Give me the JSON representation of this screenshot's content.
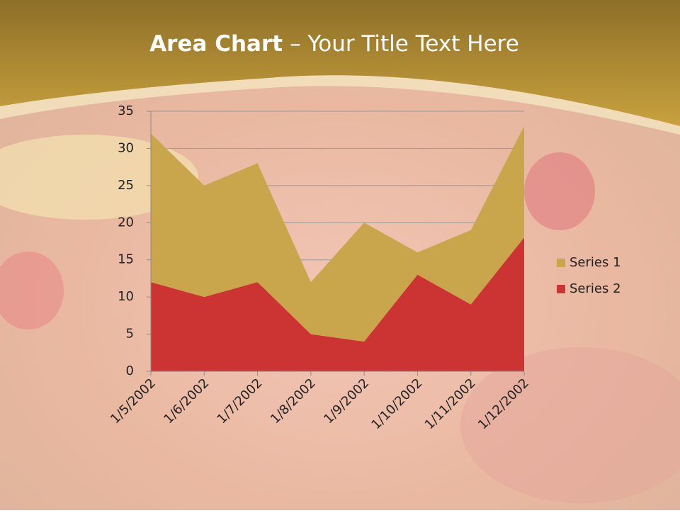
{
  "slide": {
    "title_bold": "Area Chart",
    "title_rest": "– Your Title Text Here"
  },
  "chart_data": {
    "type": "stacked-area",
    "categories": [
      "1/5/2002",
      "1/6/2002",
      "1/7/2002",
      "1/8/2002",
      "1/9/2002",
      "1/10/2002",
      "1/11/2002",
      "1/12/2002"
    ],
    "series": [
      {
        "name": "Series 1",
        "color": "#c9a64b",
        "values": [
          20,
          15,
          16,
          7,
          16,
          3,
          10,
          15
        ]
      },
      {
        "name": "Series 2",
        "color": "#cc3333",
        "values": [
          12,
          10,
          12,
          5,
          4,
          13,
          9,
          18
        ]
      }
    ],
    "ylim": [
      0,
      35
    ],
    "yticks": [
      0,
      5,
      10,
      15,
      20,
      25,
      30,
      35
    ],
    "grid": true,
    "legend": "right"
  }
}
